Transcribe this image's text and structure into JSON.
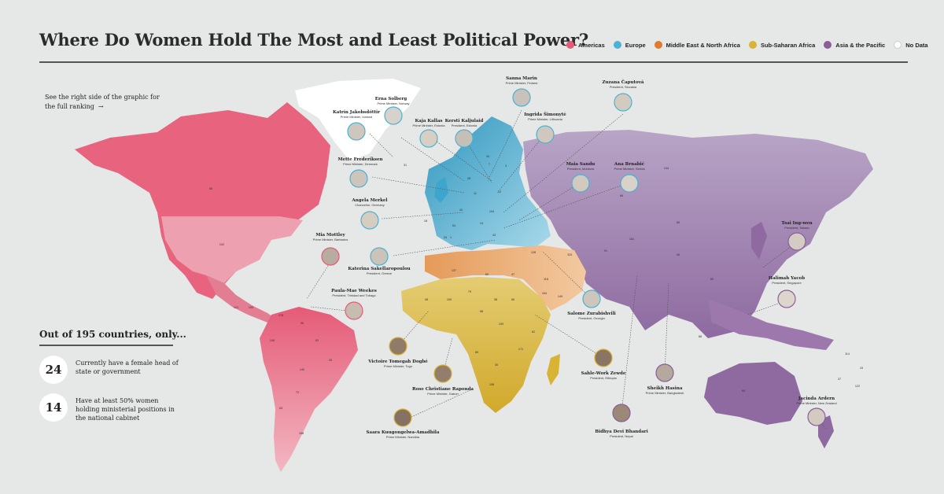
{
  "title": "Where Do Women Hold The Most and Least Political Power?",
  "legend": [
    {
      "label": "Americas",
      "color": "#e55b77"
    },
    {
      "label": "Europe",
      "color": "#4cb2d2"
    },
    {
      "label": "Middle East & North Africa",
      "color": "#e07a2f"
    },
    {
      "label": "Sub-Saharan Africa",
      "color": "#d8b334"
    },
    {
      "label": "Asia & the Pacific",
      "color": "#8a5f98"
    },
    {
      "label": "No Data",
      "color": "#ffffff"
    }
  ],
  "hint": {
    "text": "See the right side of the graphic for the full ranking",
    "arrow": "→"
  },
  "summary": {
    "title": "Out of 195 countries, only...",
    "stats": [
      {
        "number": "24",
        "text": "Currently have a female head of state or government"
      },
      {
        "number": "14",
        "text": "Have at least 50% women holding ministerial positions in the national cabinet"
      }
    ]
  },
  "leaders": [
    {
      "name": "Erna Solberg",
      "role": "Prime Minister, Norway",
      "region": "europe"
    },
    {
      "name": "Sanna Marin",
      "role": "Prime Minister, Finland",
      "region": "europe"
    },
    {
      "name": "Zuzana Čaputová",
      "role": "President, Slovakia",
      "region": "europe"
    },
    {
      "name": "Katrín Jakobsdóttir",
      "role": "Prime Minister, Iceland",
      "region": "europe"
    },
    {
      "name": "Kaja Kallas",
      "role": "Prime Minister, Estonia",
      "region": "europe"
    },
    {
      "name": "Kersti Kaljulaid",
      "role": "President, Estonia",
      "region": "europe"
    },
    {
      "name": "Ingrida Šimonytė",
      "role": "Prime Minister, Lithuania",
      "region": "europe"
    },
    {
      "name": "Mette Frederiksen",
      "role": "Prime Minister, Denmark",
      "region": "europe"
    },
    {
      "name": "Maia Sandu",
      "role": "President, Moldova",
      "region": "europe"
    },
    {
      "name": "Ana Brnabić",
      "role": "Prime Minister, Serbia",
      "region": "europe"
    },
    {
      "name": "Angela Merkel",
      "role": "Chancellor, Germany",
      "region": "europe"
    },
    {
      "name": "Mia Mottley",
      "role": "Prime Minister, Barbados",
      "region": "americas"
    },
    {
      "name": "Katerina Sakellaropoulou",
      "role": "President, Greece",
      "region": "europe"
    },
    {
      "name": "Paula-Mae Weekes",
      "role": "President, Trinidad and Tobago",
      "region": "americas"
    },
    {
      "name": "Tsai Ing-wen",
      "role": "President, Taiwan",
      "region": "asia"
    },
    {
      "name": "Halimah Yacob",
      "role": "President, Singapore",
      "region": "asia"
    },
    {
      "name": "Salome Zurabishvili",
      "role": "President, Georgia",
      "region": "europe"
    },
    {
      "name": "Victoire Tomegah Dogbé",
      "role": "Prime Minister, Togo",
      "region": "ssa"
    },
    {
      "name": "Sahle-Work Zewde",
      "role": "President, Ethiopia",
      "region": "ssa"
    },
    {
      "name": "Sheikh Hasina",
      "role": "Prime Minister, Bangladesh",
      "region": "asia"
    },
    {
      "name": "Rose Christiane Raponda",
      "role": "Prime Minister, Gabon",
      "region": "ssa"
    },
    {
      "name": "Jacinda Ardern",
      "role": "Prime Minister, New Zealand",
      "region": "asia"
    },
    {
      "name": "Bidhya Devi Bhandari",
      "role": "President, Nepal",
      "region": "asia"
    },
    {
      "name": "Saara Kuugongelwa-Amadhila",
      "role": "Prime Minister, Namibia",
      "region": "ssa"
    }
  ],
  "ranks": [
    "65",
    "31",
    "102",
    "144",
    "161",
    "56",
    "86",
    "34",
    "28",
    "11",
    "42",
    "137",
    "18",
    "54",
    "7",
    "3",
    "24",
    "1",
    "12",
    "104",
    "13",
    "43",
    "149",
    "80",
    "47",
    "116",
    "115",
    "128",
    "164",
    "38",
    "66",
    "79",
    "100",
    "48",
    "58",
    "109",
    "62",
    "171",
    "30",
    "89",
    "108",
    "92",
    "25",
    "140",
    "72",
    "63",
    "106",
    "178",
    "96",
    "168",
    "45",
    "88",
    "50",
    "69",
    "114",
    "15",
    "37",
    "122",
    "91",
    "121",
    "153"
  ]
}
